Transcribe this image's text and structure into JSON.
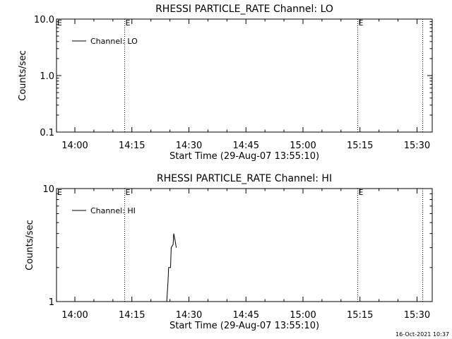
{
  "chart_data": [
    {
      "type": "line",
      "title": "RHESSI PARTICLE_RATE Channel: LO",
      "xlabel": "Start Time (29-Aug-07 13:55:10)",
      "ylabel": "Counts/sec",
      "y_scale": "log",
      "ylim": [
        0.1,
        10.0
      ],
      "y_tick_labels": [
        "0.1",
        "1.0",
        "10.0"
      ],
      "xlim": [
        "13:55:10",
        "15:34:00"
      ],
      "x_tick_labels": [
        "14:00",
        "14:15",
        "14:30",
        "14:45",
        "15:00",
        "15:15",
        "15:30"
      ],
      "legend": {
        "placement": "top-left",
        "entries": [
          "Channel: LO"
        ]
      },
      "event_lines": [
        {
          "time": "14:13:00",
          "label": "E"
        },
        {
          "time": "15:14:20",
          "label": "E"
        },
        {
          "time": "15:31:20",
          "label": ""
        }
      ],
      "series": [
        {
          "name": "Channel: LO",
          "points": []
        }
      ],
      "grid": false
    },
    {
      "type": "line",
      "title": "RHESSI PARTICLE_RATE Channel: HI",
      "xlabel": "Start Time (29-Aug-07 13:55:10)",
      "ylabel": "Counts/sec",
      "y_scale": "log",
      "ylim": [
        1,
        10
      ],
      "y_tick_labels": [
        "1",
        "10"
      ],
      "xlim": [
        "13:55:10",
        "15:34:00"
      ],
      "x_tick_labels": [
        "14:00",
        "14:15",
        "14:30",
        "14:45",
        "15:00",
        "15:15",
        "15:30"
      ],
      "legend": {
        "placement": "top-left",
        "entries": [
          "Channel: HI"
        ]
      },
      "event_lines": [
        {
          "time": "14:13:00",
          "label": "E"
        },
        {
          "time": "15:14:20",
          "label": "E"
        },
        {
          "time": "15:31:20",
          "label": ""
        }
      ],
      "series": [
        {
          "name": "Channel: HI",
          "points": [
            [
              "14:24:10",
              1.0
            ],
            [
              "14:24:30",
              1.5
            ],
            [
              "14:24:40",
              2.0
            ],
            [
              "14:25:10",
              2.0
            ],
            [
              "14:25:20",
              3.0
            ],
            [
              "14:25:50",
              3.2
            ],
            [
              "14:26:00",
              4.0
            ],
            [
              "14:26:20",
              3.5
            ],
            [
              "14:26:40",
              3.0
            ]
          ]
        }
      ],
      "grid": false
    }
  ],
  "footer": {
    "timestamp": "16-Oct-2021 10:37"
  }
}
